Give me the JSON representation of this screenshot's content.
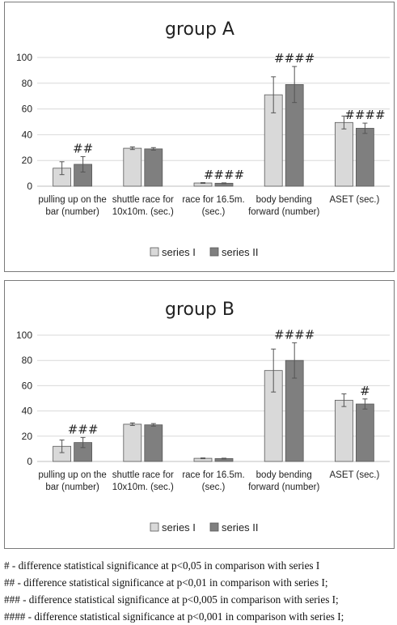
{
  "chart_data": [
    {
      "type": "bar",
      "title": "group A",
      "ylim": [
        0,
        100
      ],
      "yticks": [
        0,
        20,
        40,
        60,
        80,
        100
      ],
      "grid": true,
      "legend_position": "bottom",
      "categories": [
        [
          "pulling up on the",
          "bar (number)"
        ],
        [
          "shuttle race for",
          "10x10m. (sec.)"
        ],
        [
          "race for 16.5m.",
          "(sec.)"
        ],
        [
          "body bending",
          "forward (number)"
        ],
        [
          "ASET (sec.)"
        ]
      ],
      "series": [
        {
          "name": "series I",
          "values": [
            14,
            29.5,
            2.5,
            71,
            49.5
          ],
          "errors": [
            5,
            1,
            0.3,
            14,
            5
          ],
          "color": "#d9d9d9"
        },
        {
          "name": "series II",
          "values": [
            17,
            29,
            2.3,
            79,
            45
          ],
          "errors": [
            6,
            1,
            0.3,
            14,
            4
          ],
          "color": "#7f7f7f"
        }
      ],
      "significance": [
        "##",
        "",
        "####",
        "####",
        "####"
      ]
    },
    {
      "type": "bar",
      "title": "group B",
      "ylim": [
        0,
        100
      ],
      "yticks": [
        0,
        20,
        40,
        60,
        80,
        100
      ],
      "grid": true,
      "legend_position": "bottom",
      "categories": [
        [
          "pulling up on the",
          "bar (number)"
        ],
        [
          "shuttle race for",
          "10x10m. (sec.)"
        ],
        [
          "race for 16.5m.",
          "(sec.)"
        ],
        [
          "body bending",
          "forward (number)"
        ],
        [
          "ASET (sec.)"
        ]
      ],
      "series": [
        {
          "name": "series I",
          "values": [
            12,
            29.5,
            2.5,
            72,
            48.5
          ],
          "errors": [
            5,
            1,
            0.3,
            17,
            5
          ],
          "color": "#d9d9d9"
        },
        {
          "name": "series II",
          "values": [
            15,
            29,
            2.3,
            80,
            45.5
          ],
          "errors": [
            4,
            1,
            0.3,
            14,
            4
          ],
          "color": "#7f7f7f"
        }
      ],
      "significance": [
        "###",
        "",
        "",
        "####",
        "#"
      ]
    }
  ],
  "footnotes": [
    "# - difference statistical significance at p<0,05  in comparison with  series I",
    "##  - difference statistical significance at p<0,01 in comparison with  series I;",
    "###  - difference statistical significance at p<0,005 in comparison with  series I;",
    "#### - difference statistical significance at p<0,001 in comparison with  series I;"
  ]
}
